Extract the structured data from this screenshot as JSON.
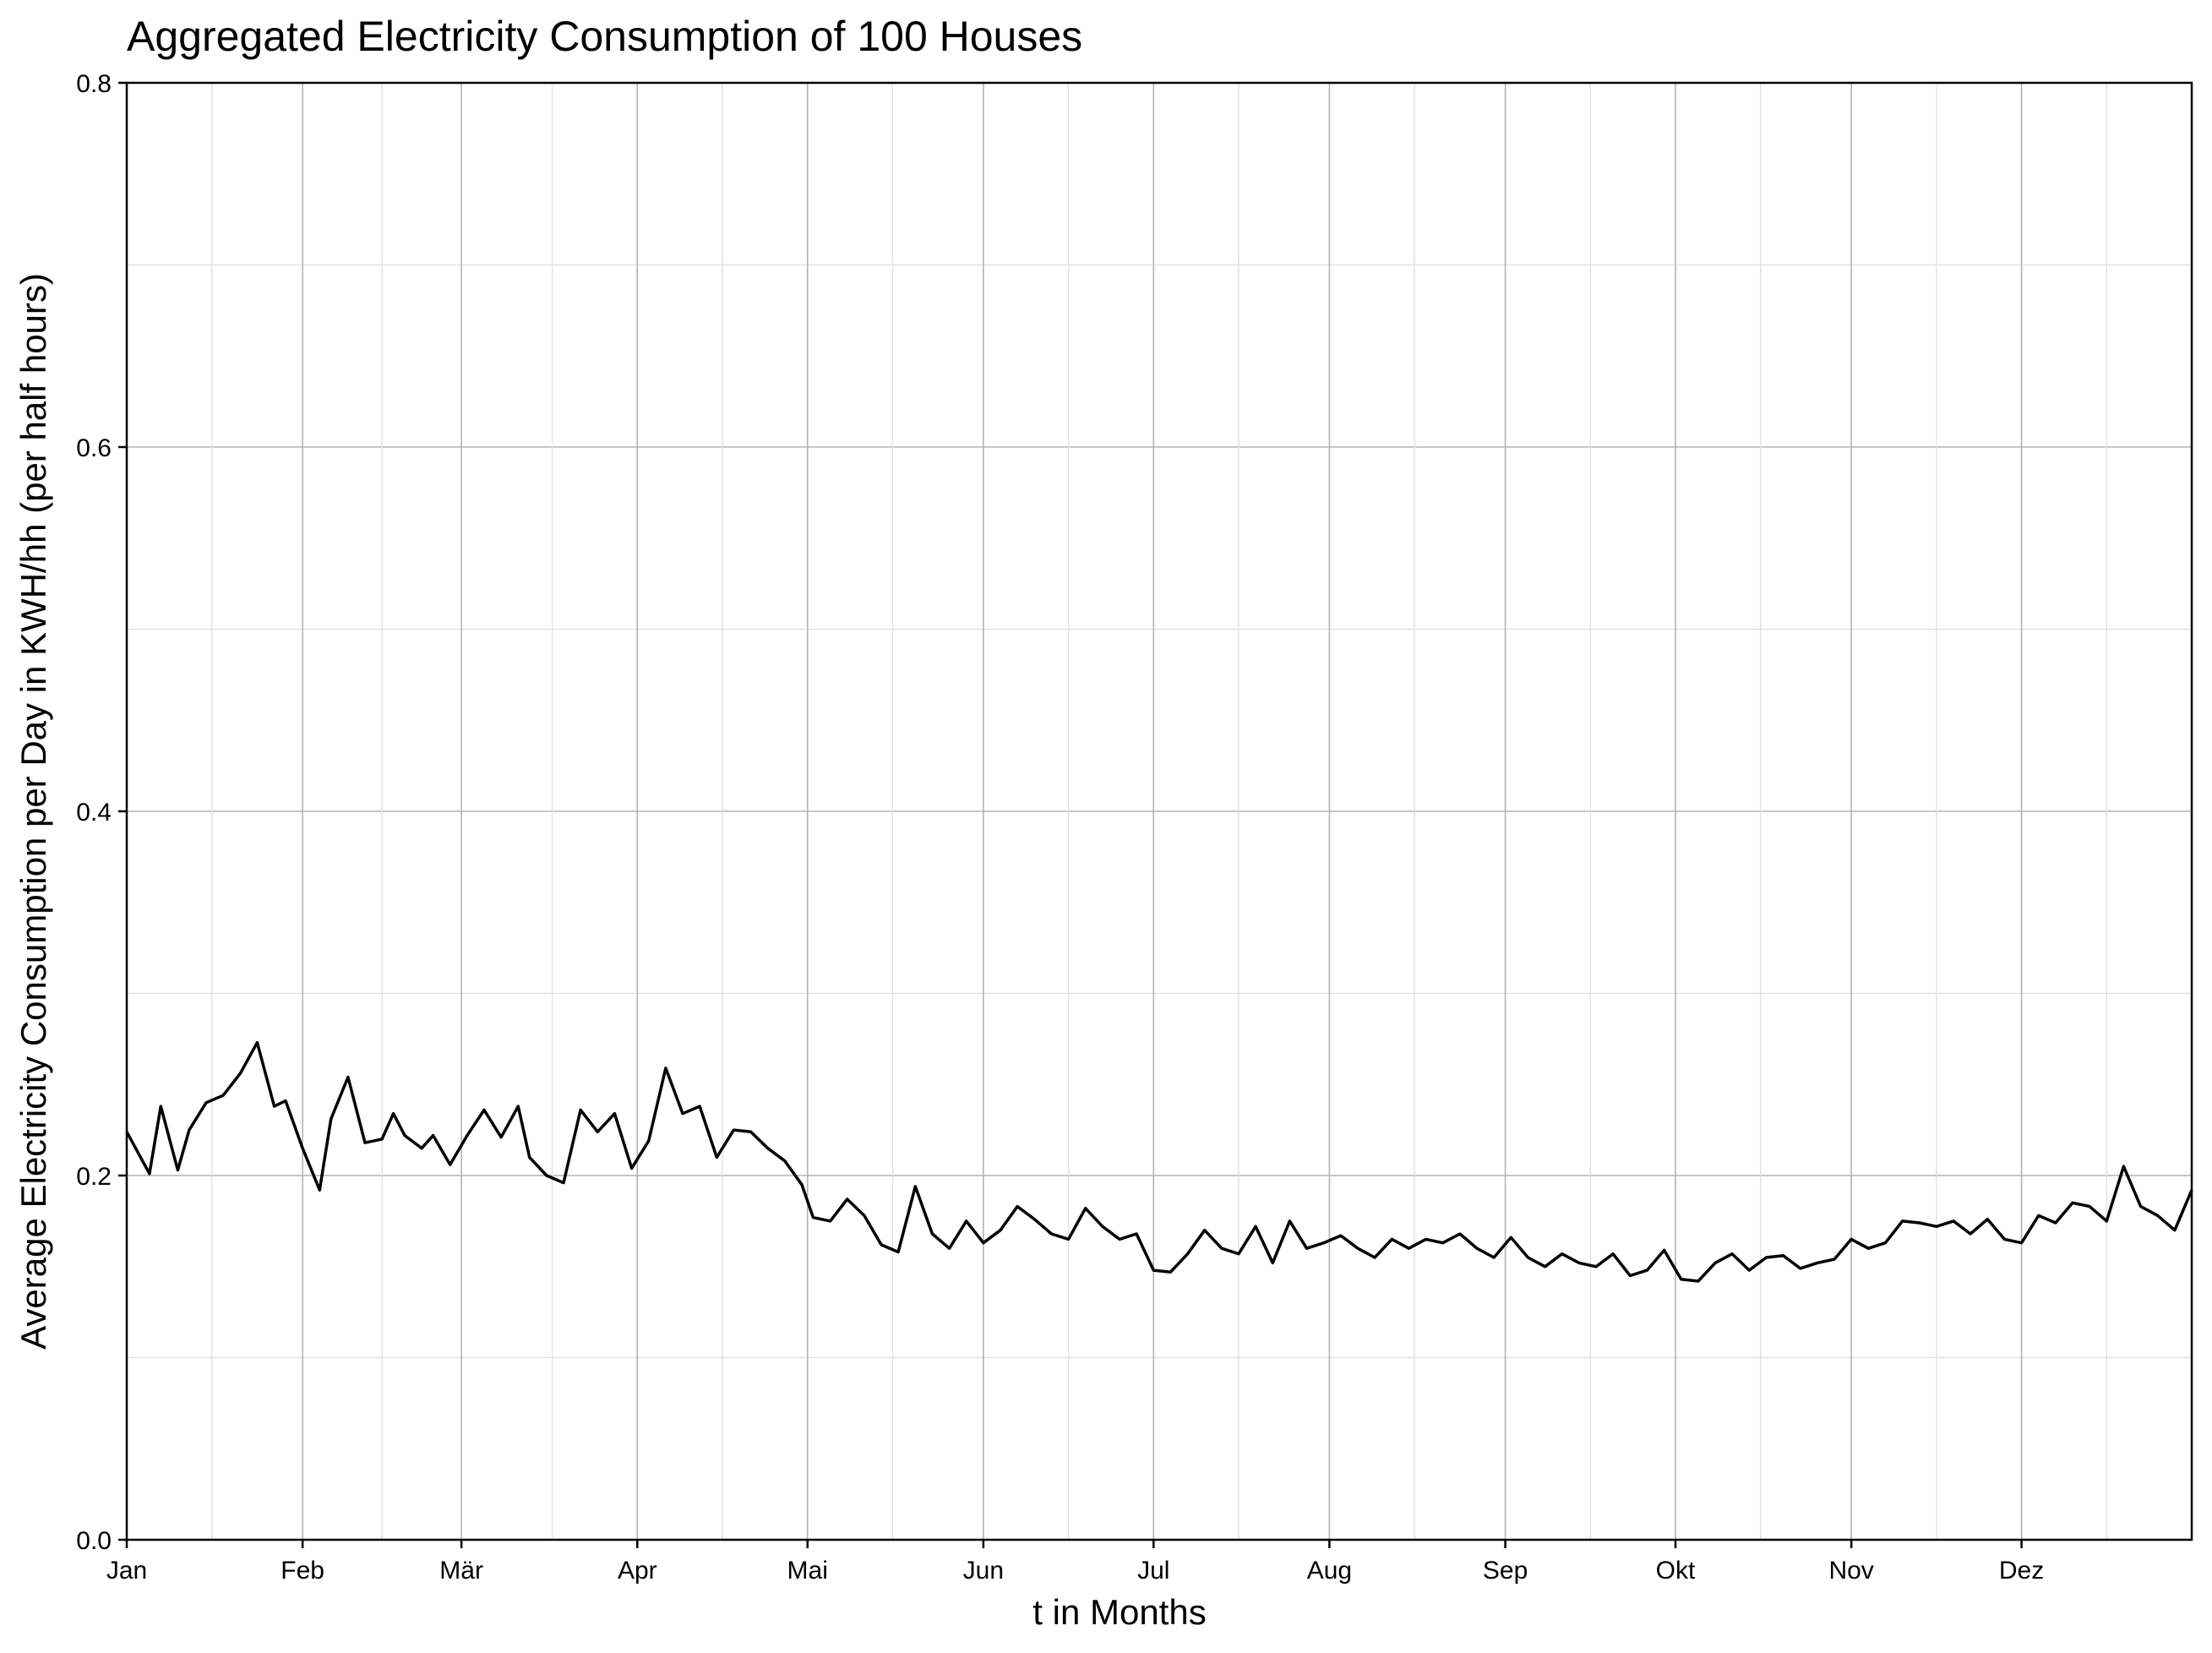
{
  "chart_data": {
    "type": "line",
    "title": "Aggregated Electricity Consumption of 100 Houses",
    "xlabel": "t in Months",
    "ylabel": "Average Electricity Consumption per Day in KWH/hh (per half hours)",
    "x_tick_labels": [
      "Jan",
      "Feb",
      "Mär",
      "Apr",
      "Mai",
      "Jun",
      "Jul",
      "Aug",
      "Sep",
      "Okt",
      "Nov",
      "Dez"
    ],
    "y_tick_labels": [
      "0.0",
      "0.2",
      "0.4",
      "0.6",
      "0.8"
    ],
    "y_ticks": [
      0.0,
      0.2,
      0.4,
      0.6,
      0.8
    ],
    "ylim": [
      0,
      0.8
    ],
    "grid": true,
    "series": [
      {
        "x_unit": "day of year",
        "x": [
          1,
          5,
          7,
          10,
          12,
          15,
          18,
          21,
          24,
          27,
          29,
          32,
          35,
          37,
          40,
          43,
          46,
          48,
          50,
          53,
          55,
          58,
          61,
          64,
          67,
          70,
          72,
          75,
          78,
          81,
          84,
          87,
          90,
          93,
          96,
          99,
          102,
          105,
          108,
          111,
          114,
          117,
          120,
          122,
          125,
          128,
          131,
          134,
          137,
          140,
          143,
          146,
          149,
          152,
          155,
          158,
          161,
          164,
          167,
          170,
          173,
          176,
          179,
          182,
          185,
          188,
          191,
          194,
          197,
          200,
          203,
          206,
          209,
          212,
          215,
          218,
          221,
          224,
          227,
          230,
          233,
          236,
          239,
          242,
          245,
          248,
          251,
          254,
          257,
          260,
          263,
          266,
          269,
          272,
          275,
          278,
          281,
          284,
          287,
          290,
          293,
          296,
          299,
          302,
          305,
          308,
          311,
          314,
          317,
          320,
          323,
          326,
          329,
          332,
          335,
          338,
          341,
          344,
          347,
          350,
          353,
          356,
          359,
          362,
          365
        ],
        "y": [
          0.224,
          0.201,
          0.238,
          0.203,
          0.225,
          0.24,
          0.244,
          0.256,
          0.273,
          0.238,
          0.241,
          0.215,
          0.192,
          0.231,
          0.254,
          0.218,
          0.22,
          0.234,
          0.222,
          0.215,
          0.222,
          0.206,
          0.222,
          0.236,
          0.221,
          0.238,
          0.21,
          0.2,
          0.196,
          0.236,
          0.224,
          0.234,
          0.204,
          0.219,
          0.259,
          0.234,
          0.238,
          0.21,
          0.225,
          0.224,
          0.215,
          0.208,
          0.195,
          0.177,
          0.175,
          0.187,
          0.178,
          0.162,
          0.158,
          0.194,
          0.168,
          0.16,
          0.175,
          0.163,
          0.17,
          0.183,
          0.176,
          0.168,
          0.165,
          0.182,
          0.172,
          0.165,
          0.168,
          0.148,
          0.147,
          0.157,
          0.17,
          0.16,
          0.157,
          0.172,
          0.152,
          0.175,
          0.16,
          0.163,
          0.167,
          0.16,
          0.155,
          0.165,
          0.16,
          0.165,
          0.163,
          0.168,
          0.16,
          0.155,
          0.166,
          0.155,
          0.15,
          0.157,
          0.152,
          0.15,
          0.157,
          0.145,
          0.148,
          0.159,
          0.143,
          0.142,
          0.152,
          0.157,
          0.148,
          0.155,
          0.156,
          0.149,
          0.152,
          0.154,
          0.165,
          0.16,
          0.163,
          0.175,
          0.174,
          0.172,
          0.175,
          0.168,
          0.176,
          0.165,
          0.163,
          0.178,
          0.174,
          0.185,
          0.183,
          0.175,
          0.205,
          0.183,
          0.178,
          0.17,
          0.192
        ],
        "x2": [],
        "y2": []
      }
    ]
  }
}
